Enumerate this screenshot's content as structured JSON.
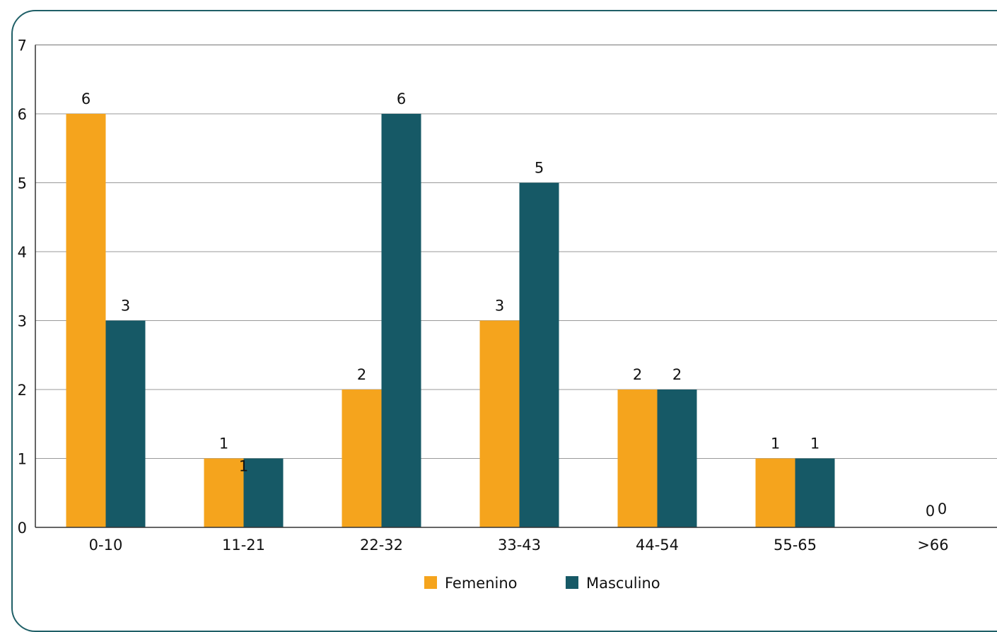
{
  "chart_data": {
    "type": "bar",
    "title": "",
    "xlabel": "",
    "ylabel": "",
    "categories": [
      "0-10",
      "11-21",
      "22-32",
      "33-43",
      "44-54",
      "55-65",
      ">66"
    ],
    "series": [
      {
        "name": "Femenino",
        "values": [
          6,
          1,
          2,
          3,
          2,
          1,
          0
        ],
        "color": "#F5A41D"
      },
      {
        "name": "Masculino",
        "values": [
          3,
          1,
          6,
          5,
          2,
          1,
          0
        ],
        "color": "#165966"
      }
    ],
    "ylim": [
      0,
      7
    ],
    "yticks": [
      0,
      1,
      2,
      3,
      4,
      5,
      6,
      7
    ],
    "grid": true,
    "legend_position": "bottom"
  }
}
